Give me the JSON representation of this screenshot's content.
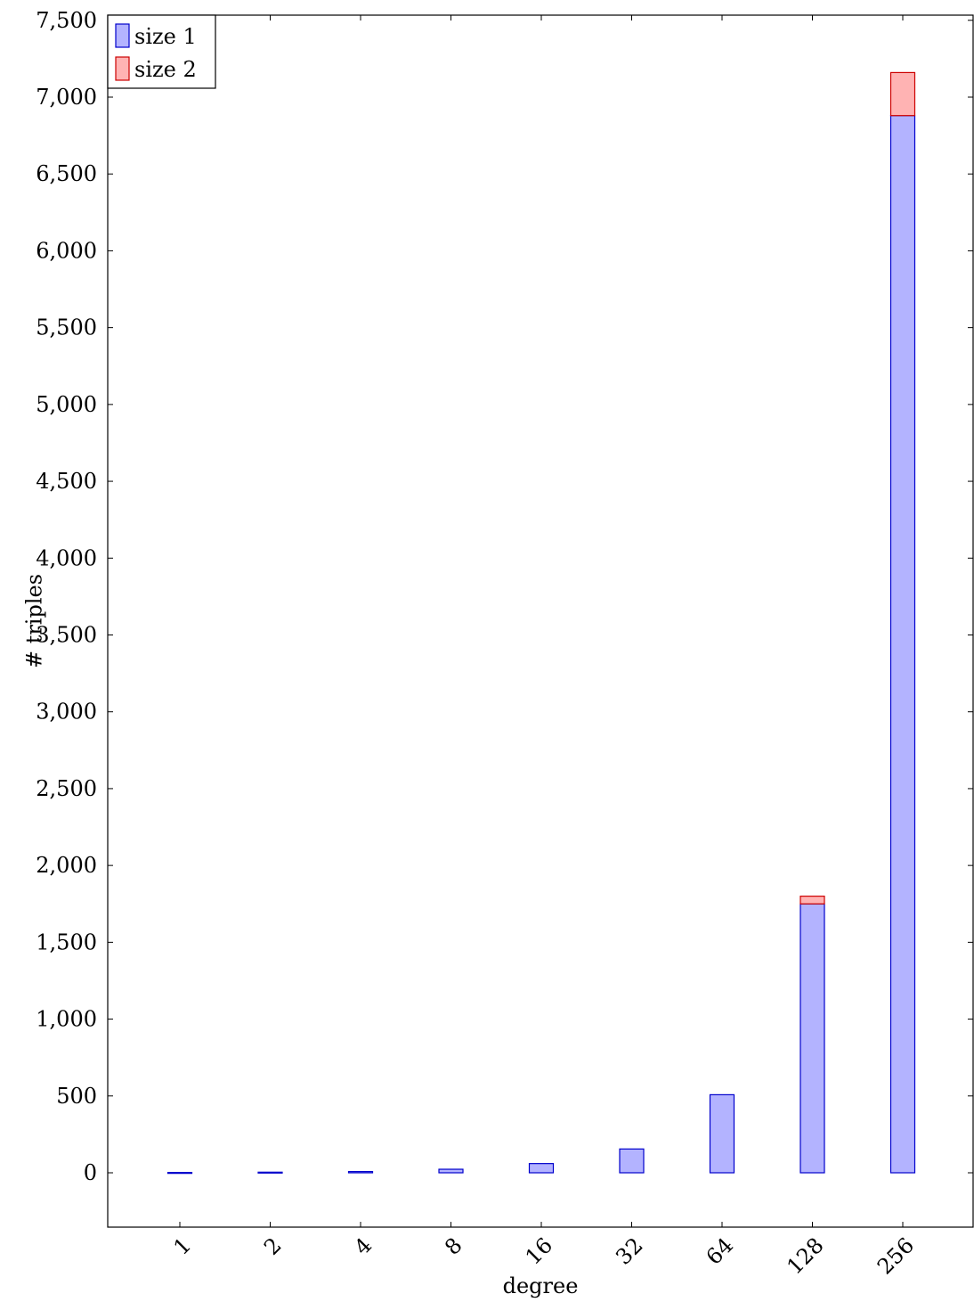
{
  "chart_data": {
    "type": "bar",
    "stacked": true,
    "categories": [
      "1",
      "2",
      "4",
      "8",
      "16",
      "32",
      "64",
      "128",
      "256"
    ],
    "series": [
      {
        "name": "size 1",
        "values": [
          2,
          4,
          8,
          23,
          60,
          155,
          508,
          1750,
          6880
        ],
        "fill": "#b3b3ff",
        "stroke": "#0000cc"
      },
      {
        "name": "size 2",
        "values": [
          0,
          0,
          0,
          0,
          0,
          0,
          0,
          50,
          280
        ],
        "fill": "#ffb3b3",
        "stroke": "#cc0000"
      }
    ],
    "xlabel": "degree",
    "ylabel": "# triples",
    "ylim": [
      -360,
      7500
    ],
    "yticks": [
      0,
      500,
      1000,
      1500,
      2000,
      2500,
      3000,
      3500,
      4000,
      4500,
      5000,
      5500,
      6000,
      6500,
      7000,
      7500
    ],
    "ytick_labels": [
      "0",
      "500",
      "1,000",
      "1,500",
      "2,000",
      "2,500",
      "3,000",
      "3,500",
      "4,000",
      "4,500",
      "5,000",
      "5,500",
      "6,000",
      "6,500",
      "7,000",
      "7,500"
    ],
    "grid": false,
    "legend_position": "top-left"
  }
}
